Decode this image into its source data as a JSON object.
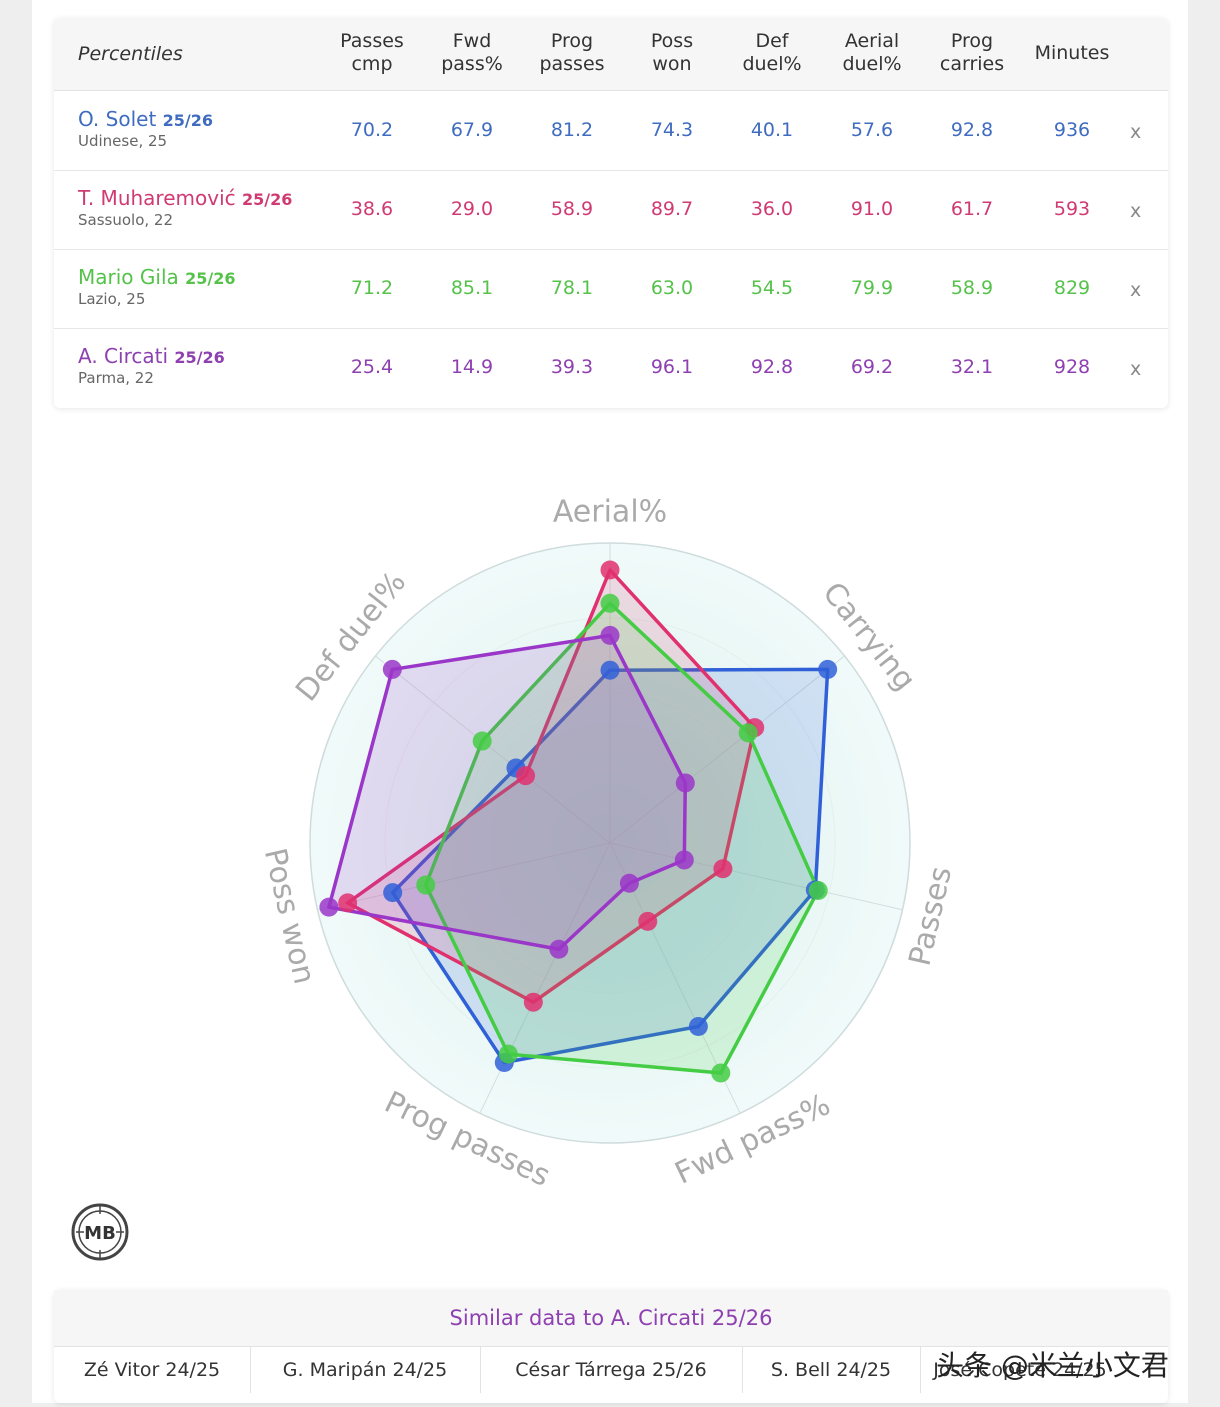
{
  "table": {
    "corner_label": "Percentiles",
    "columns": [
      {
        "line1": "Passes",
        "line2": "cmp"
      },
      {
        "line1": "Fwd",
        "line2": "pass%"
      },
      {
        "line1": "Prog",
        "line2": "passes"
      },
      {
        "line1": "Poss",
        "line2": "won"
      },
      {
        "line1": "Def",
        "line2": "duel%"
      },
      {
        "line1": "Aerial",
        "line2": "duel%"
      },
      {
        "line1": "Prog",
        "line2": "carries"
      },
      {
        "line1": "Minutes",
        "line2": ""
      }
    ],
    "remove_label": "x",
    "rows": [
      {
        "name": "O. Solet",
        "season": "25/26",
        "club": "Udinese, 25",
        "color": "#3f6cc0",
        "values": [
          "70.2",
          "67.9",
          "81.2",
          "74.3",
          "40.1",
          "57.6",
          "92.8",
          "936"
        ]
      },
      {
        "name": "T. Muharemović",
        "season": "25/26",
        "club": "Sassuolo, 22",
        "color": "#d03a72",
        "values": [
          "38.6",
          "29.0",
          "58.9",
          "89.7",
          "36.0",
          "91.0",
          "61.7",
          "593"
        ]
      },
      {
        "name": "Mario Gila",
        "season": "25/26",
        "club": "Lazio, 25",
        "color": "#55c24a",
        "values": [
          "71.2",
          "85.1",
          "78.1",
          "63.0",
          "54.5",
          "79.9",
          "58.9",
          "829"
        ]
      },
      {
        "name": "A. Circati",
        "season": "25/26",
        "club": "Parma, 22",
        "color": "#8e3fb0",
        "values": [
          "25.4",
          "14.9",
          "39.3",
          "96.1",
          "92.8",
          "69.2",
          "32.1",
          "928"
        ]
      }
    ]
  },
  "chart_data": {
    "type": "radar",
    "axes": [
      "Aerial%",
      "Carrying",
      "Passes",
      "Fwd pass%",
      "Prog passes",
      "Poss won",
      "Def duel%"
    ],
    "range": [
      0,
      100
    ],
    "series": [
      {
        "name": "O. Solet 25/26",
        "color": "#3060d8",
        "values": [
          57.6,
          92.8,
          70.2,
          67.9,
          81.2,
          74.3,
          40.1
        ]
      },
      {
        "name": "T. Muharemović 25/26",
        "color": "#e0306e",
        "values": [
          91.0,
          61.7,
          38.6,
          29.0,
          58.9,
          89.7,
          36.0
        ]
      },
      {
        "name": "Mario Gila 25/26",
        "color": "#44cc44",
        "values": [
          79.9,
          58.9,
          71.2,
          85.1,
          78.1,
          63.0,
          54.5
        ]
      },
      {
        "name": "A. Circati 25/26",
        "color": "#9a36c8",
        "values": [
          69.2,
          32.1,
          25.4,
          14.9,
          39.3,
          96.1,
          92.8
        ]
      }
    ]
  },
  "logo": {
    "text": "MB"
  },
  "similar": {
    "title": "Similar data to A. Circati 25/26",
    "items": [
      "Zé Vitor 24/25",
      "G. Maripán 24/25",
      "César Tárrega 25/26",
      "S. Bell 24/25",
      "José Copete 24/25"
    ]
  },
  "watermark": "头条 @米兰小文君"
}
